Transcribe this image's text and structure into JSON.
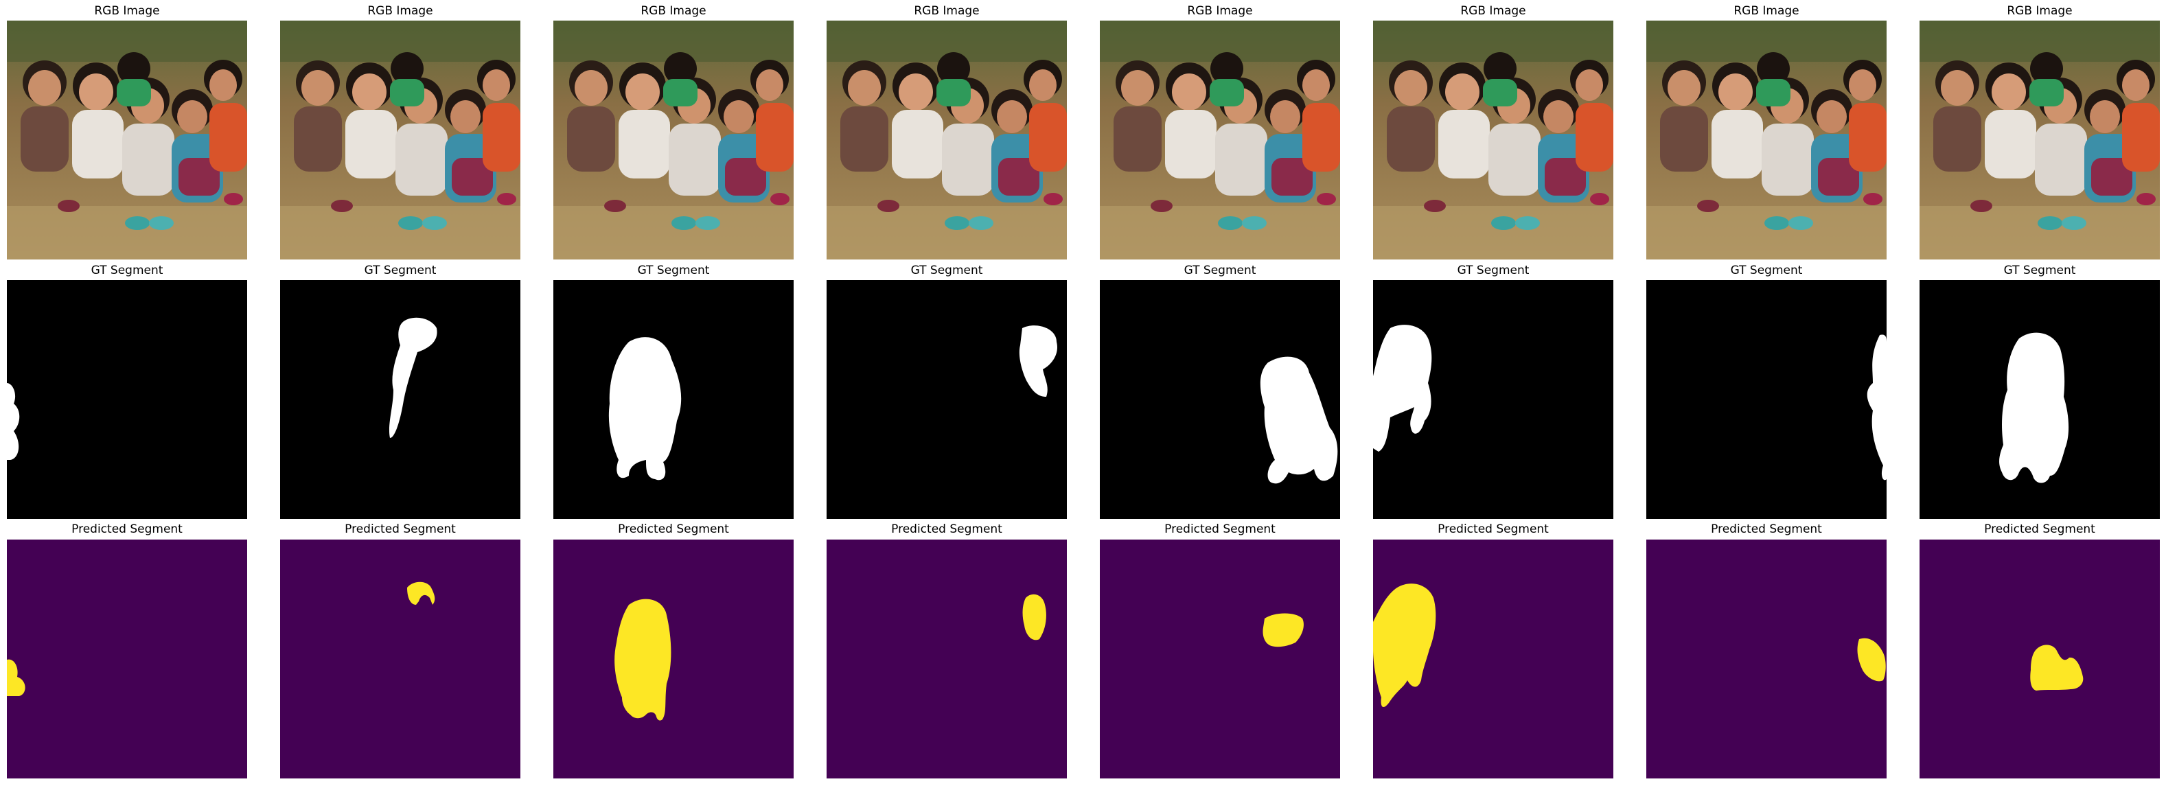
{
  "rows": [
    {
      "title": "RGB Image",
      "kind": "rgb"
    },
    {
      "title": "GT Segment",
      "kind": "gt"
    },
    {
      "title": "Predicted Segment",
      "kind": "pred"
    }
  ],
  "columns": 8,
  "colors": {
    "gt_background": "#000000",
    "gt_foreground": "#ffffff",
    "pred_background": "#440154",
    "pred_foreground": "#fde725"
  }
}
